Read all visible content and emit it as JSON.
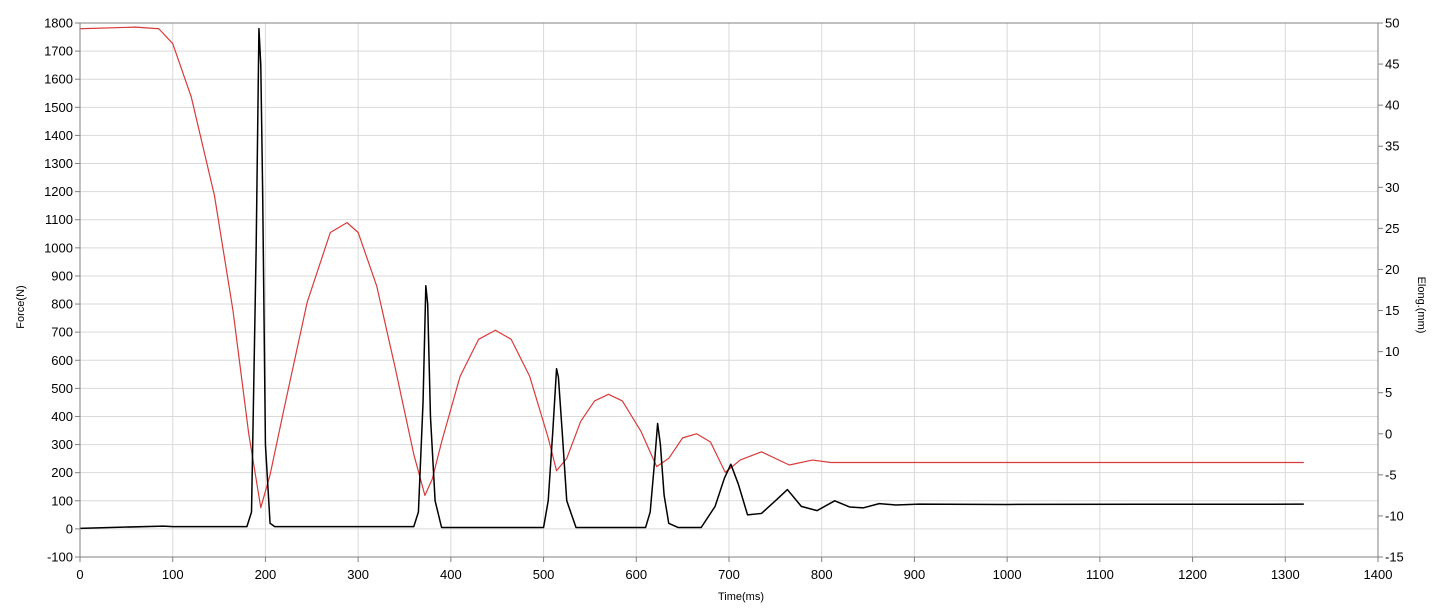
{
  "chart_data": {
    "type": "line",
    "title": "",
    "xlabel": "Time(ms)",
    "ylabel_left": "Force(N)",
    "ylabel_right": "Elong.(mm)",
    "xlim": [
      0,
      1400
    ],
    "ylim_left": [
      -100,
      1800
    ],
    "ylim_right": [
      -15,
      50
    ],
    "x_ticks": [
      0,
      100,
      200,
      300,
      400,
      500,
      600,
      700,
      800,
      900,
      1000,
      1100,
      1200,
      1300,
      1400
    ],
    "y_left_ticks": [
      -100,
      0,
      100,
      200,
      300,
      400,
      500,
      600,
      700,
      800,
      900,
      1000,
      1100,
      1200,
      1300,
      1400,
      1500,
      1600,
      1700,
      1800
    ],
    "y_right_ticks": [
      -15,
      -10,
      -5,
      0,
      5,
      10,
      15,
      20,
      25,
      30,
      35,
      40,
      45,
      50
    ],
    "grid": true,
    "legend": "none",
    "series": [
      {
        "axis": "left",
        "color": "#000000",
        "x": [
          0,
          90,
          100,
          180,
          185,
          190,
          193,
          195,
          197,
          200,
          205,
          210,
          360,
          365,
          370,
          373,
          375,
          378,
          383,
          390,
          500,
          505,
          510,
          514,
          516,
          520,
          525,
          535,
          610,
          615,
          620,
          623,
          626,
          630,
          635,
          645,
          670,
          685,
          695,
          702,
          710,
          720,
          735,
          750,
          763,
          778,
          795,
          814,
          830,
          845,
          862,
          880,
          905,
          1000,
          1320
        ],
        "y": [
          2,
          10,
          8,
          8,
          60,
          1000,
          1780,
          1650,
          1200,
          300,
          20,
          8,
          8,
          60,
          450,
          865,
          800,
          400,
          100,
          5,
          5,
          100,
          350,
          570,
          540,
          350,
          100,
          5,
          5,
          60,
          250,
          375,
          300,
          120,
          20,
          5,
          5,
          80,
          180,
          230,
          160,
          50,
          55,
          100,
          140,
          80,
          65,
          100,
          78,
          75,
          90,
          85,
          88,
          87,
          88
        ]
      },
      {
        "axis": "right",
        "color": "#d93a3a",
        "x": [
          0,
          60,
          85,
          100,
          120,
          145,
          165,
          182,
          195,
          205,
          220,
          245,
          270,
          288,
          300,
          320,
          340,
          360,
          372,
          380,
          390,
          410,
          430,
          448,
          465,
          485,
          505,
          514,
          525,
          540,
          555,
          570,
          585,
          605,
          622,
          635,
          650,
          665,
          680,
          696,
          712,
          735,
          765,
          790,
          810,
          1320
        ],
        "y": [
          49.3,
          49.5,
          49.3,
          47.5,
          41,
          29,
          15,
          0,
          -9,
          -5,
          3,
          16,
          24.5,
          25.7,
          24.5,
          18,
          8,
          -2.5,
          -7.5,
          -5.5,
          -1,
          7,
          11.5,
          12.6,
          11.5,
          7,
          -0.5,
          -4.5,
          -3,
          1.5,
          4,
          4.8,
          4,
          0.3,
          -4,
          -3,
          -0.5,
          0,
          -1,
          -4.7,
          -3.2,
          -2.2,
          -3.8,
          -3.2,
          -3.5,
          -3.5
        ]
      }
    ]
  }
}
